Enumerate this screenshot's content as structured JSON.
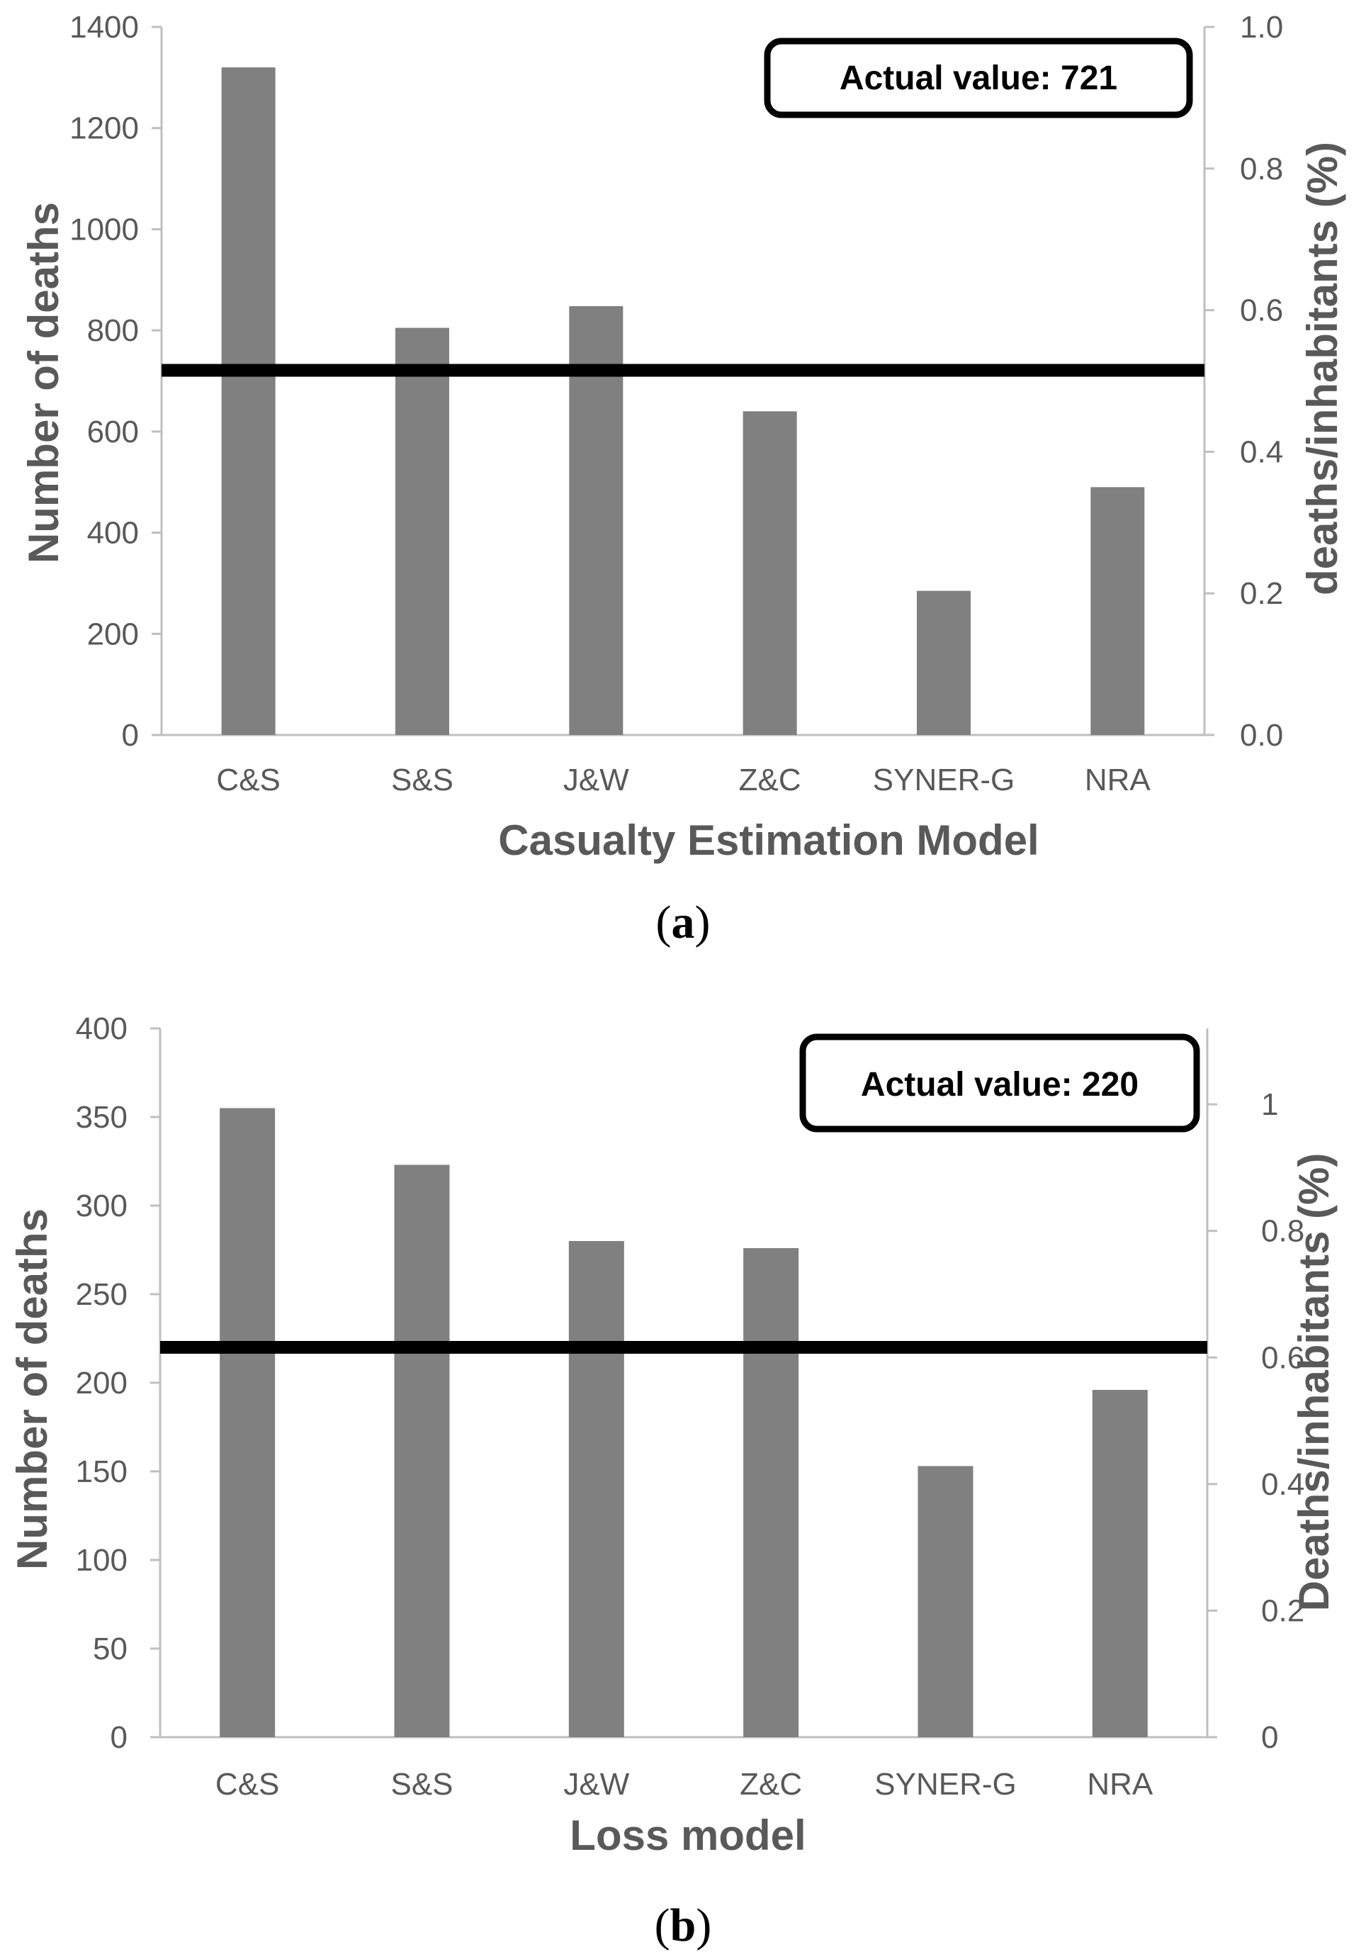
{
  "colors": {
    "bar": "#808080",
    "reference_line": "#000000",
    "axis": "#bfbfbf",
    "text": "#595959"
  },
  "chart_data": [
    {
      "type": "bar",
      "panel_label": "a",
      "title": "",
      "categories": [
        "C&S",
        "S&S",
        "J&W",
        "Z&C",
        "SYNER-G",
        "NRA"
      ],
      "values": [
        1320,
        805,
        848,
        640,
        285,
        490
      ],
      "xlabel": "Casualty Estimation Model",
      "ylabel": "Number of deaths",
      "ylabel_right": "deaths/inhabitants (%)",
      "ylim": [
        0,
        1400
      ],
      "yticks": [
        0,
        200,
        400,
        600,
        800,
        1000,
        1200,
        1400
      ],
      "yticks_right": [
        "0.0",
        "0.2",
        "0.4",
        "0.6",
        "0.8",
        "1.0"
      ],
      "y2lim": [
        0,
        1.0
      ],
      "reference_line": {
        "value": 721,
        "label": "Actual value: 721"
      },
      "legend": "none",
      "grid": false
    },
    {
      "type": "bar",
      "panel_label": "b",
      "title": "",
      "categories": [
        "C&S",
        "S&S",
        "J&W",
        "Z&C",
        "SYNER-G",
        "NRA"
      ],
      "values": [
        355,
        323,
        280,
        276,
        153,
        196
      ],
      "xlabel": "Loss model",
      "ylabel": "Number of deaths",
      "ylabel_right": "Deaths/inhabitants (%)",
      "ylim": [
        0,
        400
      ],
      "yticks": [
        0,
        50,
        100,
        150,
        200,
        250,
        300,
        350,
        400
      ],
      "yticks_right": [
        "0",
        "0.2",
        "0.4",
        "0.6",
        "0.8",
        "1"
      ],
      "y2lim": [
        0,
        1.12
      ],
      "reference_line": {
        "value": 220,
        "label": "Actual value: 220"
      },
      "legend": "none",
      "grid": false
    }
  ]
}
